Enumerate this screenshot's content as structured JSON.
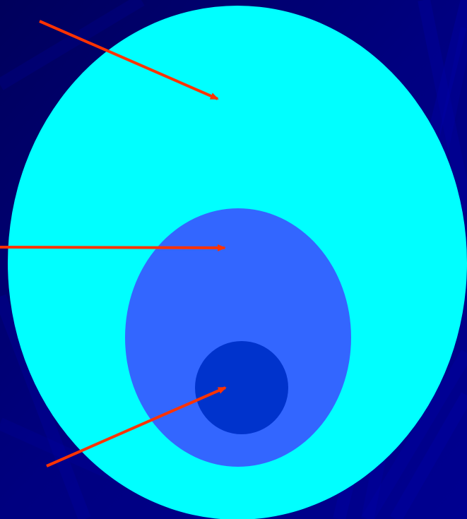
{
  "diagram": {
    "type": "nested-ellipses",
    "shapes": [
      {
        "name": "outer-ellipse",
        "color": "#00FFFF",
        "role": "outer"
      },
      {
        "name": "middle-ellipse",
        "color": "#3366FF",
        "role": "middle"
      },
      {
        "name": "inner-circle",
        "color": "#0033CC",
        "role": "inner"
      }
    ],
    "arrows": [
      {
        "name": "arrow-to-outer",
        "color": "#FF3300",
        "target": "outer-ellipse"
      },
      {
        "name": "arrow-to-middle",
        "color": "#FF3300",
        "target": "middle-ellipse"
      },
      {
        "name": "arrow-to-inner",
        "color": "#FF3300",
        "target": "inner-circle"
      }
    ]
  },
  "background": {
    "base_color": "#000080",
    "streak_color": "#0000AA",
    "style": "radiating-streaks"
  }
}
